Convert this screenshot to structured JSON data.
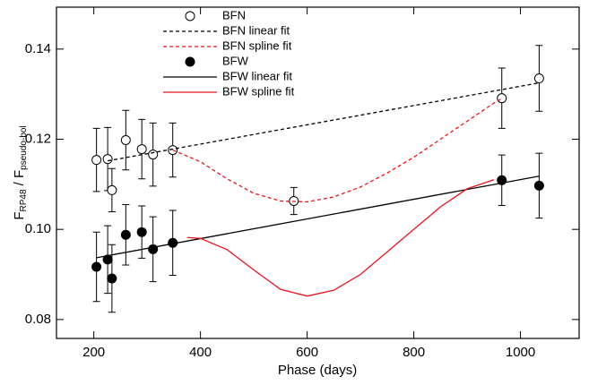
{
  "chart_data": {
    "type": "scatter",
    "xlabel": "Phase (days)",
    "ylabel": {
      "f1": "F",
      "sub1": "RP48",
      "f2": " / F",
      "sub2": "pseudo-bol"
    },
    "xlim": [
      130,
      1110
    ],
    "ylim": [
      0.0758,
      0.1493
    ],
    "xticks": [
      200,
      400,
      600,
      800,
      1000
    ],
    "yticks": [
      0.08,
      {
        "value": 0.1,
        "label": "0.10"
      },
      0.12,
      0.14
    ],
    "series": [
      {
        "name": "BFN",
        "kind": "points",
        "marker": "open",
        "color": "#000000",
        "x": [
          205,
          226,
          234,
          260,
          290,
          311,
          348,
          575,
          965,
          1035
        ],
        "values": [
          0.1154,
          0.1156,
          0.1087,
          0.1198,
          0.1178,
          0.1166,
          0.1176,
          0.1063,
          0.1291,
          0.1335
        ],
        "errors": [
          0.007,
          0.007,
          0.0048,
          0.0066,
          0.0066,
          0.007,
          0.006,
          0.003,
          0.0067,
          0.0073
        ]
      },
      {
        "name": "BFN linear fit",
        "kind": "line",
        "dash": true,
        "color": "#000000",
        "x": [
          226,
          1035
        ],
        "values": [
          0.1152,
          0.1325
        ]
      },
      {
        "name": "BFN spline fit",
        "kind": "line",
        "dash": true,
        "color": "#e8141c",
        "x": [
          348,
          400,
          450,
          500,
          550,
          600,
          650,
          700,
          750,
          800,
          850,
          900,
          950,
          965
        ],
        "values": [
          0.1176,
          0.115,
          0.1112,
          0.108,
          0.1063,
          0.1061,
          0.1072,
          0.1094,
          0.1125,
          0.116,
          0.12,
          0.124,
          0.128,
          0.129
        ]
      },
      {
        "name": "BFW",
        "kind": "points",
        "marker": "filled",
        "color": "#000000",
        "x": [
          205,
          226,
          234,
          260,
          290,
          311,
          348,
          965,
          1035
        ],
        "values": [
          0.0917,
          0.0933,
          0.0891,
          0.0988,
          0.0994,
          0.0956,
          0.097,
          0.1109,
          0.1097
        ],
        "errors": [
          0.0077,
          0.0075,
          0.0075,
          0.0067,
          0.0058,
          0.0072,
          0.0072,
          0.0056,
          0.0072
        ]
      },
      {
        "name": "BFW linear fit",
        "kind": "line",
        "dash": false,
        "color": "#000000",
        "x": [
          205,
          1035
        ],
        "values": [
          0.0937,
          0.1118
        ]
      },
      {
        "name": "BFW spline fit",
        "kind": "line",
        "dash": false,
        "color": "#e8141c",
        "x": [
          375,
          400,
          450,
          500,
          550,
          600,
          650,
          700,
          750,
          800,
          850,
          900,
          950
        ],
        "values": [
          0.0982,
          0.098,
          0.0955,
          0.091,
          0.0867,
          0.0852,
          0.0865,
          0.09,
          0.095,
          0.1,
          0.105,
          0.109,
          0.111
        ]
      }
    ]
  }
}
